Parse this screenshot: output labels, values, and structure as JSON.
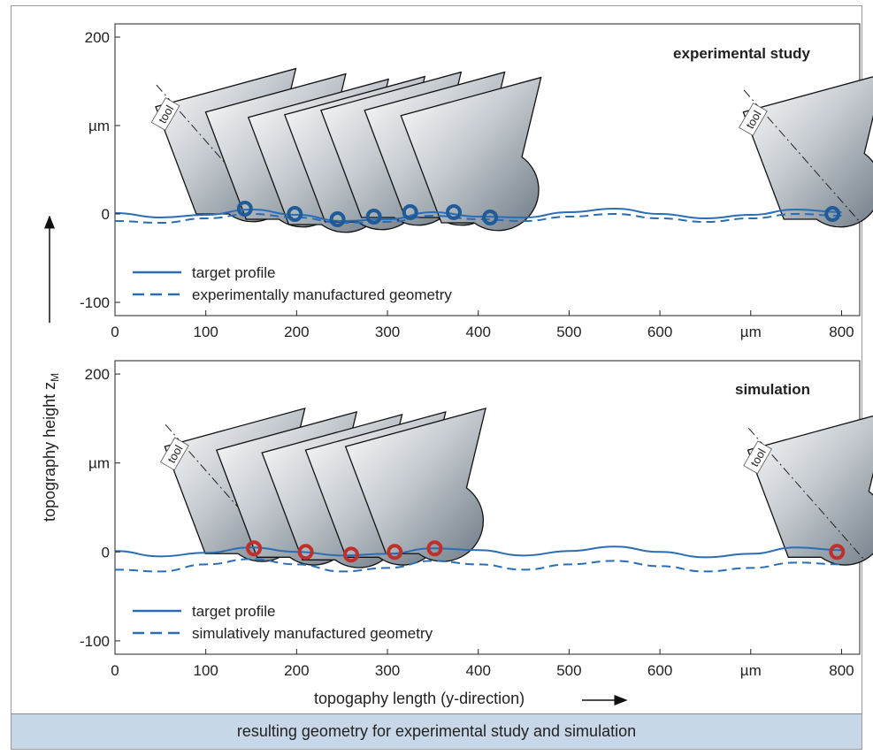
{
  "figure": {
    "ylabel": "topography height z",
    "ylabel_subscript": "M",
    "xlabel": "topogaphy length (y-direction)",
    "caption": "resulting geometry for experimental study and simulation",
    "tool_label": "tool"
  },
  "colors": {
    "profile": "#2a6db5",
    "marker_experiment": "#1f5b99",
    "marker_simulation": "#c0302a",
    "tool_light": "#ffffff",
    "tool_dark": "#6e7b86",
    "caption_bg": "#c7d7e8"
  },
  "chart_data": [
    {
      "type": "line",
      "title": "experimental study",
      "xlim": [
        0,
        820
      ],
      "ylim": [
        -115,
        215
      ],
      "x_ticks": [
        "0",
        "100",
        "200",
        "300",
        "400",
        "500",
        "600",
        "µm",
        "800"
      ],
      "x_tick_values": [
        0,
        100,
        200,
        300,
        400,
        500,
        600,
        700,
        800
      ],
      "y_ticks": [
        "200",
        "µm",
        "0",
        "-100"
      ],
      "y_tick_values": [
        200,
        100,
        0,
        -100
      ],
      "series": [
        {
          "name": "target profile",
          "style": "solid",
          "x": [
            0,
            50,
            100,
            150,
            200,
            250,
            300,
            350,
            400,
            450,
            500,
            550,
            600,
            650,
            700,
            750,
            800
          ],
          "y": [
            1,
            -4,
            -1,
            5,
            -1,
            -8,
            -6,
            2,
            -3,
            -4,
            2,
            6,
            0,
            -5,
            -1,
            5,
            2
          ]
        },
        {
          "name": "experimentally manufactured geometry",
          "style": "dashed",
          "x": [
            0,
            50,
            100,
            150,
            200,
            250,
            300,
            350,
            400,
            450,
            500,
            550,
            600,
            650,
            700,
            750,
            800
          ],
          "y": [
            -8,
            -10,
            -5,
            0,
            -4,
            -10,
            -9,
            -2,
            -6,
            -8,
            -3,
            0,
            -5,
            -9,
            -5,
            0,
            -2
          ]
        }
      ],
      "tool_contacts": {
        "x": [
          143,
          198,
          245,
          285,
          325,
          373,
          413,
          790
        ],
        "y": [
          6,
          0,
          -6,
          -3,
          2,
          2,
          -4,
          0
        ]
      }
    },
    {
      "type": "line",
      "title": "simulation",
      "xlim": [
        0,
        820
      ],
      "ylim": [
        -115,
        215
      ],
      "x_ticks": [
        "0",
        "100",
        "200",
        "300",
        "400",
        "500",
        "600",
        "µm",
        "800"
      ],
      "x_tick_values": [
        0,
        100,
        200,
        300,
        400,
        500,
        600,
        700,
        800
      ],
      "y_ticks": [
        "200",
        "µm",
        "0",
        "-100"
      ],
      "y_tick_values": [
        200,
        100,
        0,
        -100
      ],
      "series": [
        {
          "name": "target profile",
          "style": "solid",
          "x": [
            0,
            50,
            100,
            150,
            200,
            250,
            300,
            350,
            400,
            450,
            500,
            550,
            600,
            650,
            700,
            750,
            800
          ],
          "y": [
            1,
            -5,
            -1,
            5,
            0,
            -4,
            -2,
            4,
            2,
            -4,
            1,
            6,
            0,
            -6,
            -2,
            5,
            2
          ]
        },
        {
          "name": "simulatively manufactured geometry",
          "style": "dashed",
          "x": [
            0,
            50,
            100,
            150,
            200,
            250,
            300,
            350,
            400,
            450,
            500,
            550,
            600,
            650,
            700,
            750,
            800
          ],
          "y": [
            -20,
            -22,
            -14,
            -8,
            -14,
            -22,
            -18,
            -10,
            -14,
            -20,
            -14,
            -10,
            -16,
            -22,
            -18,
            -12,
            -14
          ]
        }
      ],
      "tool_contacts": {
        "x": [
          153,
          210,
          260,
          308,
          352,
          795
        ],
        "y": [
          4,
          0,
          -3,
          0,
          4,
          0
        ]
      }
    }
  ]
}
